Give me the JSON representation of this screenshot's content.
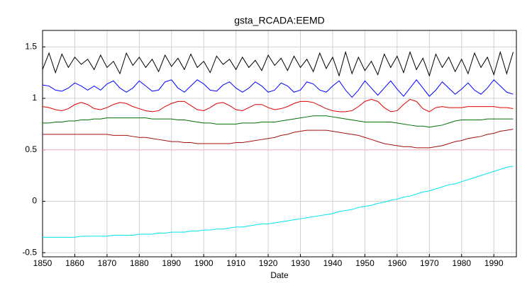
{
  "chart_data": {
    "type": "line",
    "title": "gsta_RCADA:EEMD",
    "x_label": "Date",
    "grid": true,
    "xlim": [
      1850,
      1997
    ],
    "ylim": [
      -0.54,
      1.66
    ],
    "xticks": [
      1850,
      1860,
      1870,
      1880,
      1890,
      1900,
      1910,
      1920,
      1930,
      1940,
      1950,
      1960,
      1970,
      1980,
      1990
    ],
    "yticks": [
      -0.5,
      0,
      0.5,
      1,
      1.5
    ],
    "x": [
      1850,
      1852,
      1854,
      1856,
      1858,
      1860,
      1862,
      1864,
      1866,
      1868,
      1870,
      1872,
      1874,
      1876,
      1878,
      1880,
      1882,
      1884,
      1886,
      1888,
      1890,
      1892,
      1894,
      1896,
      1898,
      1900,
      1902,
      1904,
      1906,
      1908,
      1910,
      1912,
      1914,
      1916,
      1918,
      1920,
      1922,
      1924,
      1926,
      1928,
      1930,
      1932,
      1934,
      1936,
      1938,
      1940,
      1942,
      1944,
      1946,
      1948,
      1950,
      1952,
      1954,
      1956,
      1958,
      1960,
      1962,
      1964,
      1966,
      1968,
      1970,
      1972,
      1974,
      1976,
      1978,
      1980,
      1982,
      1984,
      1986,
      1988,
      1990,
      1992,
      1994,
      1996
    ],
    "series": [
      {
        "color": "#000000",
        "values": [
          1.28,
          1.44,
          1.25,
          1.43,
          1.3,
          1.4,
          1.33,
          1.38,
          1.28,
          1.42,
          1.3,
          1.36,
          1.24,
          1.44,
          1.32,
          1.4,
          1.3,
          1.38,
          1.26,
          1.42,
          1.31,
          1.39,
          1.28,
          1.43,
          1.3,
          1.36,
          1.25,
          1.41,
          1.33,
          1.38,
          1.28,
          1.4,
          1.3,
          1.37,
          1.27,
          1.42,
          1.32,
          1.39,
          1.27,
          1.41,
          1.3,
          1.38,
          1.26,
          1.44,
          1.29,
          1.4,
          1.22,
          1.45,
          1.24,
          1.4,
          1.27,
          1.36,
          1.23,
          1.43,
          1.3,
          1.41,
          1.25,
          1.45,
          1.28,
          1.39,
          1.22,
          1.43,
          1.3,
          1.4,
          1.26,
          1.38,
          1.24,
          1.44,
          1.3,
          1.4,
          1.23,
          1.45,
          1.24,
          1.45
        ]
      },
      {
        "color": "#0000ff",
        "values": [
          1.13,
          1.12,
          1.08,
          1.07,
          1.1,
          1.15,
          1.12,
          1.08,
          1.12,
          1.08,
          1.14,
          1.17,
          1.1,
          1.06,
          1.1,
          1.17,
          1.12,
          1.07,
          1.08,
          1.16,
          1.18,
          1.1,
          1.06,
          1.12,
          1.18,
          1.14,
          1.08,
          1.07,
          1.13,
          1.16,
          1.1,
          1.06,
          1.1,
          1.16,
          1.12,
          1.06,
          1.08,
          1.15,
          1.12,
          1.06,
          1.08,
          1.16,
          1.14,
          1.08,
          1.06,
          1.12,
          1.17,
          1.08,
          1.01,
          1.08,
          1.17,
          1.1,
          1.03,
          1.1,
          1.17,
          1.09,
          1.02,
          1.1,
          1.18,
          1.1,
          1.02,
          1.08,
          1.16,
          1.1,
          1.04,
          1.09,
          1.15,
          1.08,
          1.04,
          1.1,
          1.18,
          1.12,
          1.06,
          1.04
        ]
      },
      {
        "color": "#e00000",
        "values": [
          0.92,
          0.91,
          0.89,
          0.88,
          0.9,
          0.94,
          0.96,
          0.94,
          0.9,
          0.89,
          0.91,
          0.94,
          0.96,
          0.95,
          0.92,
          0.9,
          0.88,
          0.87,
          0.88,
          0.92,
          0.95,
          0.97,
          0.97,
          0.93,
          0.89,
          0.88,
          0.91,
          0.95,
          0.96,
          0.93,
          0.89,
          0.88,
          0.91,
          0.94,
          0.94,
          0.91,
          0.89,
          0.9,
          0.92,
          0.95,
          0.97,
          0.97,
          0.96,
          0.93,
          0.9,
          0.88,
          0.87,
          0.87,
          0.88,
          0.92,
          0.97,
          0.99,
          0.97,
          0.91,
          0.87,
          0.88,
          0.94,
          0.99,
          0.97,
          0.9,
          0.87,
          0.91,
          0.92,
          0.91,
          0.91,
          0.91,
          0.92,
          0.92,
          0.92,
          0.92,
          0.92,
          0.91,
          0.91,
          0.9
        ]
      },
      {
        "color": "#007000",
        "values": [
          0.76,
          0.76,
          0.77,
          0.77,
          0.78,
          0.78,
          0.79,
          0.79,
          0.8,
          0.8,
          0.81,
          0.81,
          0.81,
          0.81,
          0.81,
          0.81,
          0.81,
          0.8,
          0.8,
          0.8,
          0.8,
          0.79,
          0.79,
          0.78,
          0.77,
          0.76,
          0.76,
          0.75,
          0.75,
          0.75,
          0.75,
          0.76,
          0.76,
          0.76,
          0.77,
          0.77,
          0.77,
          0.78,
          0.79,
          0.8,
          0.81,
          0.82,
          0.83,
          0.83,
          0.83,
          0.82,
          0.81,
          0.8,
          0.79,
          0.78,
          0.77,
          0.77,
          0.77,
          0.77,
          0.77,
          0.76,
          0.75,
          0.74,
          0.73,
          0.73,
          0.72,
          0.73,
          0.74,
          0.76,
          0.78,
          0.79,
          0.79,
          0.79,
          0.79,
          0.8,
          0.8,
          0.8,
          0.8,
          0.8
        ]
      },
      {
        "color": "#a01010",
        "values": [
          0.65,
          0.65,
          0.65,
          0.65,
          0.65,
          0.65,
          0.65,
          0.65,
          0.65,
          0.65,
          0.65,
          0.64,
          0.64,
          0.64,
          0.63,
          0.62,
          0.62,
          0.61,
          0.6,
          0.59,
          0.58,
          0.58,
          0.57,
          0.57,
          0.56,
          0.56,
          0.56,
          0.56,
          0.56,
          0.56,
          0.57,
          0.57,
          0.58,
          0.59,
          0.6,
          0.61,
          0.62,
          0.64,
          0.65,
          0.67,
          0.68,
          0.69,
          0.69,
          0.69,
          0.69,
          0.68,
          0.67,
          0.66,
          0.65,
          0.64,
          0.62,
          0.6,
          0.58,
          0.56,
          0.55,
          0.54,
          0.53,
          0.53,
          0.52,
          0.52,
          0.52,
          0.53,
          0.54,
          0.56,
          0.58,
          0.59,
          0.61,
          0.62,
          0.63,
          0.65,
          0.66,
          0.68,
          0.69,
          0.7
        ]
      },
      {
        "color": "#ffb6c1",
        "values": [
          0.5,
          0.5,
          0.5,
          0.5,
          0.5,
          0.5,
          0.5,
          0.5,
          0.5,
          0.5,
          0.5,
          0.5,
          0.5,
          0.5,
          0.5,
          0.5,
          0.5,
          0.5,
          0.5,
          0.5,
          0.5,
          0.5,
          0.5,
          0.5,
          0.5,
          0.5,
          0.5,
          0.5,
          0.5,
          0.5,
          0.5,
          0.5,
          0.5,
          0.5,
          0.5,
          0.5,
          0.5,
          0.5,
          0.5,
          0.5,
          0.5,
          0.5,
          0.5,
          0.5,
          0.5,
          0.5,
          0.5,
          0.5,
          0.5,
          0.5,
          0.5,
          0.5,
          0.5,
          0.5,
          0.5,
          0.5,
          0.5,
          0.5,
          0.5,
          0.5,
          0.5,
          0.5,
          0.5,
          0.5,
          0.5,
          0.5,
          0.5,
          0.5,
          0.5,
          0.5,
          0.5,
          0.5,
          0.5,
          0.5
        ]
      },
      {
        "color": "#00e5ee",
        "values": [
          -0.35,
          -0.35,
          -0.35,
          -0.35,
          -0.35,
          -0.35,
          -0.34,
          -0.34,
          -0.34,
          -0.34,
          -0.34,
          -0.33,
          -0.33,
          -0.33,
          -0.33,
          -0.32,
          -0.32,
          -0.32,
          -0.31,
          -0.31,
          -0.3,
          -0.3,
          -0.3,
          -0.29,
          -0.29,
          -0.28,
          -0.28,
          -0.27,
          -0.27,
          -0.26,
          -0.25,
          -0.25,
          -0.24,
          -0.23,
          -0.22,
          -0.22,
          -0.21,
          -0.2,
          -0.19,
          -0.18,
          -0.17,
          -0.16,
          -0.15,
          -0.14,
          -0.13,
          -0.12,
          -0.1,
          -0.09,
          -0.08,
          -0.06,
          -0.05,
          -0.04,
          -0.02,
          -0.01,
          0.01,
          0.02,
          0.04,
          0.05,
          0.07,
          0.09,
          0.1,
          0.12,
          0.14,
          0.16,
          0.17,
          0.19,
          0.21,
          0.23,
          0.25,
          0.27,
          0.29,
          0.31,
          0.33,
          0.34
        ]
      }
    ]
  }
}
